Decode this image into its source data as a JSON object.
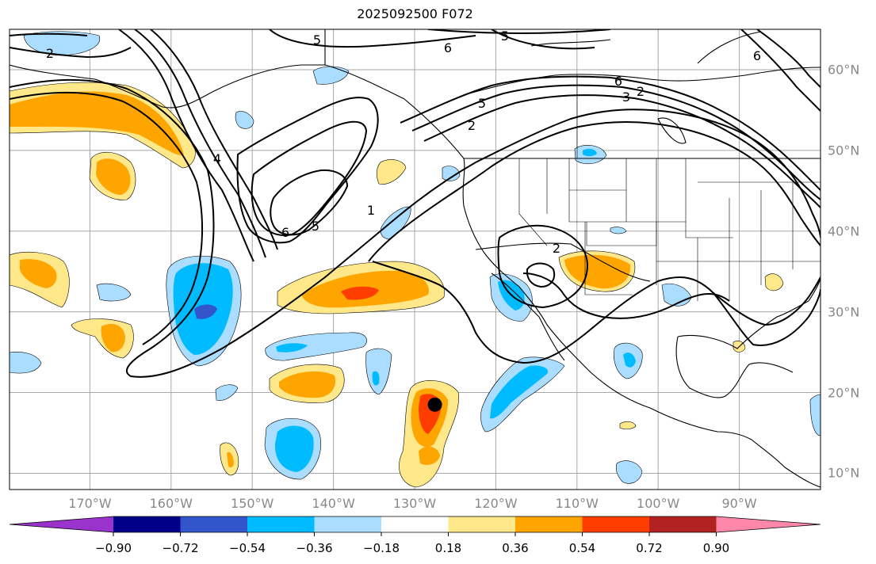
{
  "title": "2025092500 F072",
  "map": {
    "projection": "plate-carree",
    "lon_range": [
      180,
      80
    ],
    "lat_range": [
      8,
      65
    ]
  },
  "lon_labels": [
    {
      "text": "170°W",
      "lon": 170
    },
    {
      "text": "160°W",
      "lon": 160
    },
    {
      "text": "150°W",
      "lon": 150
    },
    {
      "text": "140°W",
      "lon": 140
    },
    {
      "text": "130°W",
      "lon": 130
    },
    {
      "text": "120°W",
      "lon": 120
    },
    {
      "text": "110°W",
      "lon": 110
    },
    {
      "text": "100°W",
      "lon": 100
    },
    {
      "text": "90°W",
      "lon": 90
    }
  ],
  "lat_labels": [
    {
      "text": "60°N",
      "lat": 60
    },
    {
      "text": "50°N",
      "lat": 50
    },
    {
      "text": "40°N",
      "lat": 40
    },
    {
      "text": "30°N",
      "lat": 30
    },
    {
      "text": "20°N",
      "lat": 20
    },
    {
      "text": "10°N",
      "lat": 10
    }
  ],
  "contour_labels": [
    "5",
    "6",
    "5",
    "2",
    "6",
    "6",
    "3",
    "2",
    "5",
    "2",
    "1",
    "4",
    "6",
    "5",
    "2"
  ],
  "colorbar": {
    "colors": [
      "#9933cc",
      "#000088",
      "#3355cc",
      "#00bbff",
      "#aaddff",
      "#ffffff",
      "#ffe88a",
      "#ffa500",
      "#ff3d00",
      "#b22222",
      "#ff88aa"
    ],
    "ticks": [
      "−0.90",
      "−0.72",
      "−0.54",
      "−0.36",
      "−0.18",
      "0.18",
      "0.36",
      "0.54",
      "0.72",
      "0.90"
    ]
  },
  "marker": {
    "label": "storm-center",
    "lon": 127.5,
    "lat": 18.5
  }
}
